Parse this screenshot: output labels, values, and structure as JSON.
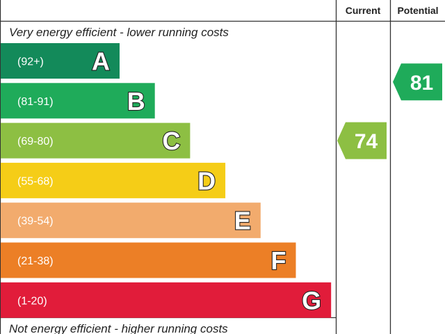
{
  "chart_data": {
    "type": "bar",
    "headers": {
      "current": "Current",
      "potential": "Potential"
    },
    "top_caption": "Very energy efficient - lower running costs",
    "bottom_caption": "Not energy efficient - higher running costs",
    "bands": [
      {
        "letter": "A",
        "range": "(92+)",
        "min": 92,
        "max": 100,
        "color": "#138a5a"
      },
      {
        "letter": "B",
        "range": "(81-91)",
        "min": 81,
        "max": 91,
        "color": "#1fab5a"
      },
      {
        "letter": "C",
        "range": "(69-80)",
        "min": 69,
        "max": 80,
        "color": "#8dbf43"
      },
      {
        "letter": "D",
        "range": "(55-68)",
        "min": 55,
        "max": 68,
        "color": "#f5cd17"
      },
      {
        "letter": "E",
        "range": "(39-54)",
        "min": 39,
        "max": 54,
        "color": "#f2ab6d"
      },
      {
        "letter": "F",
        "range": "(21-38)",
        "min": 21,
        "max": 38,
        "color": "#ec7f26"
      },
      {
        "letter": "G",
        "range": "(1-20)",
        "min": 1,
        "max": 20,
        "color": "#e11c3a"
      }
    ],
    "current": {
      "value": 74,
      "band": "C",
      "color": "#8dbf43"
    },
    "potential": {
      "value": 81,
      "band": "B",
      "color": "#1fab5a"
    }
  }
}
